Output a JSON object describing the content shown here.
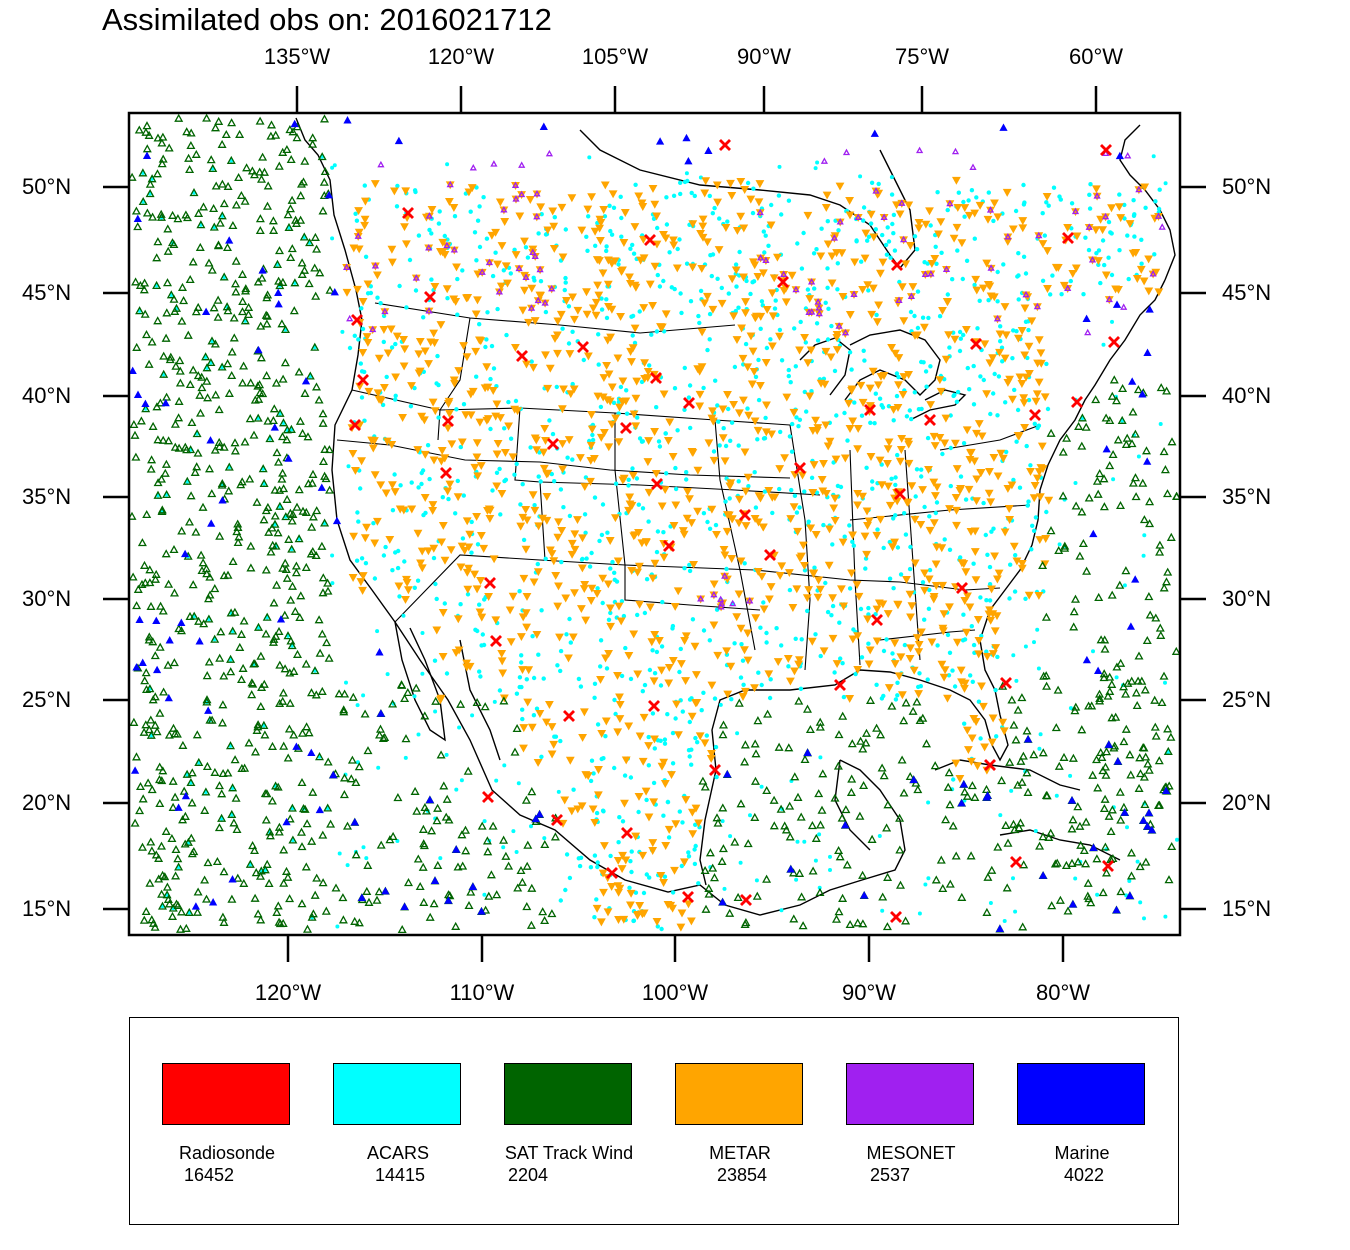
{
  "title": "Assimilated obs on: 2016021712",
  "axes": {
    "top_lon_labels": [
      "135°W",
      "120°W",
      "105°W",
      "90°W",
      "75°W",
      "60°W"
    ],
    "bottom_lon_labels": [
      "120°W",
      "110°W",
      "100°W",
      "90°W",
      "80°W"
    ],
    "left_lat_labels": [
      "50°N",
      "45°N",
      "40°N",
      "35°N",
      "30°N",
      "25°N",
      "20°N",
      "15°N"
    ],
    "right_lat_labels": [
      "50°N",
      "45°N",
      "40°N",
      "35°N",
      "30°N",
      "25°N",
      "20°N",
      "15°N"
    ]
  },
  "legend": {
    "items": [
      {
        "name": "Radiosonde",
        "count": "16452",
        "color": "#ff0000"
      },
      {
        "name": "ACARS",
        "count": "14415",
        "color": "#00ffff"
      },
      {
        "name": "SAT Track Wind",
        "count": "2204",
        "color": "#006400"
      },
      {
        "name": "METAR",
        "count": "23854",
        "color": "#ffa500"
      },
      {
        "name": "MESONET",
        "count": "2537",
        "color": "#a020f0"
      },
      {
        "name": "Marine",
        "count": "4022",
        "color": "#0000ff"
      }
    ]
  },
  "map": {
    "colors": {
      "coast": "#000000",
      "radiosonde": "#ff0000",
      "acars": "#00ffff",
      "sat_track_wind": "#006400",
      "metar": "#ffa500",
      "mesonet": "#a020f0",
      "marine": "#0000ff"
    }
  }
}
